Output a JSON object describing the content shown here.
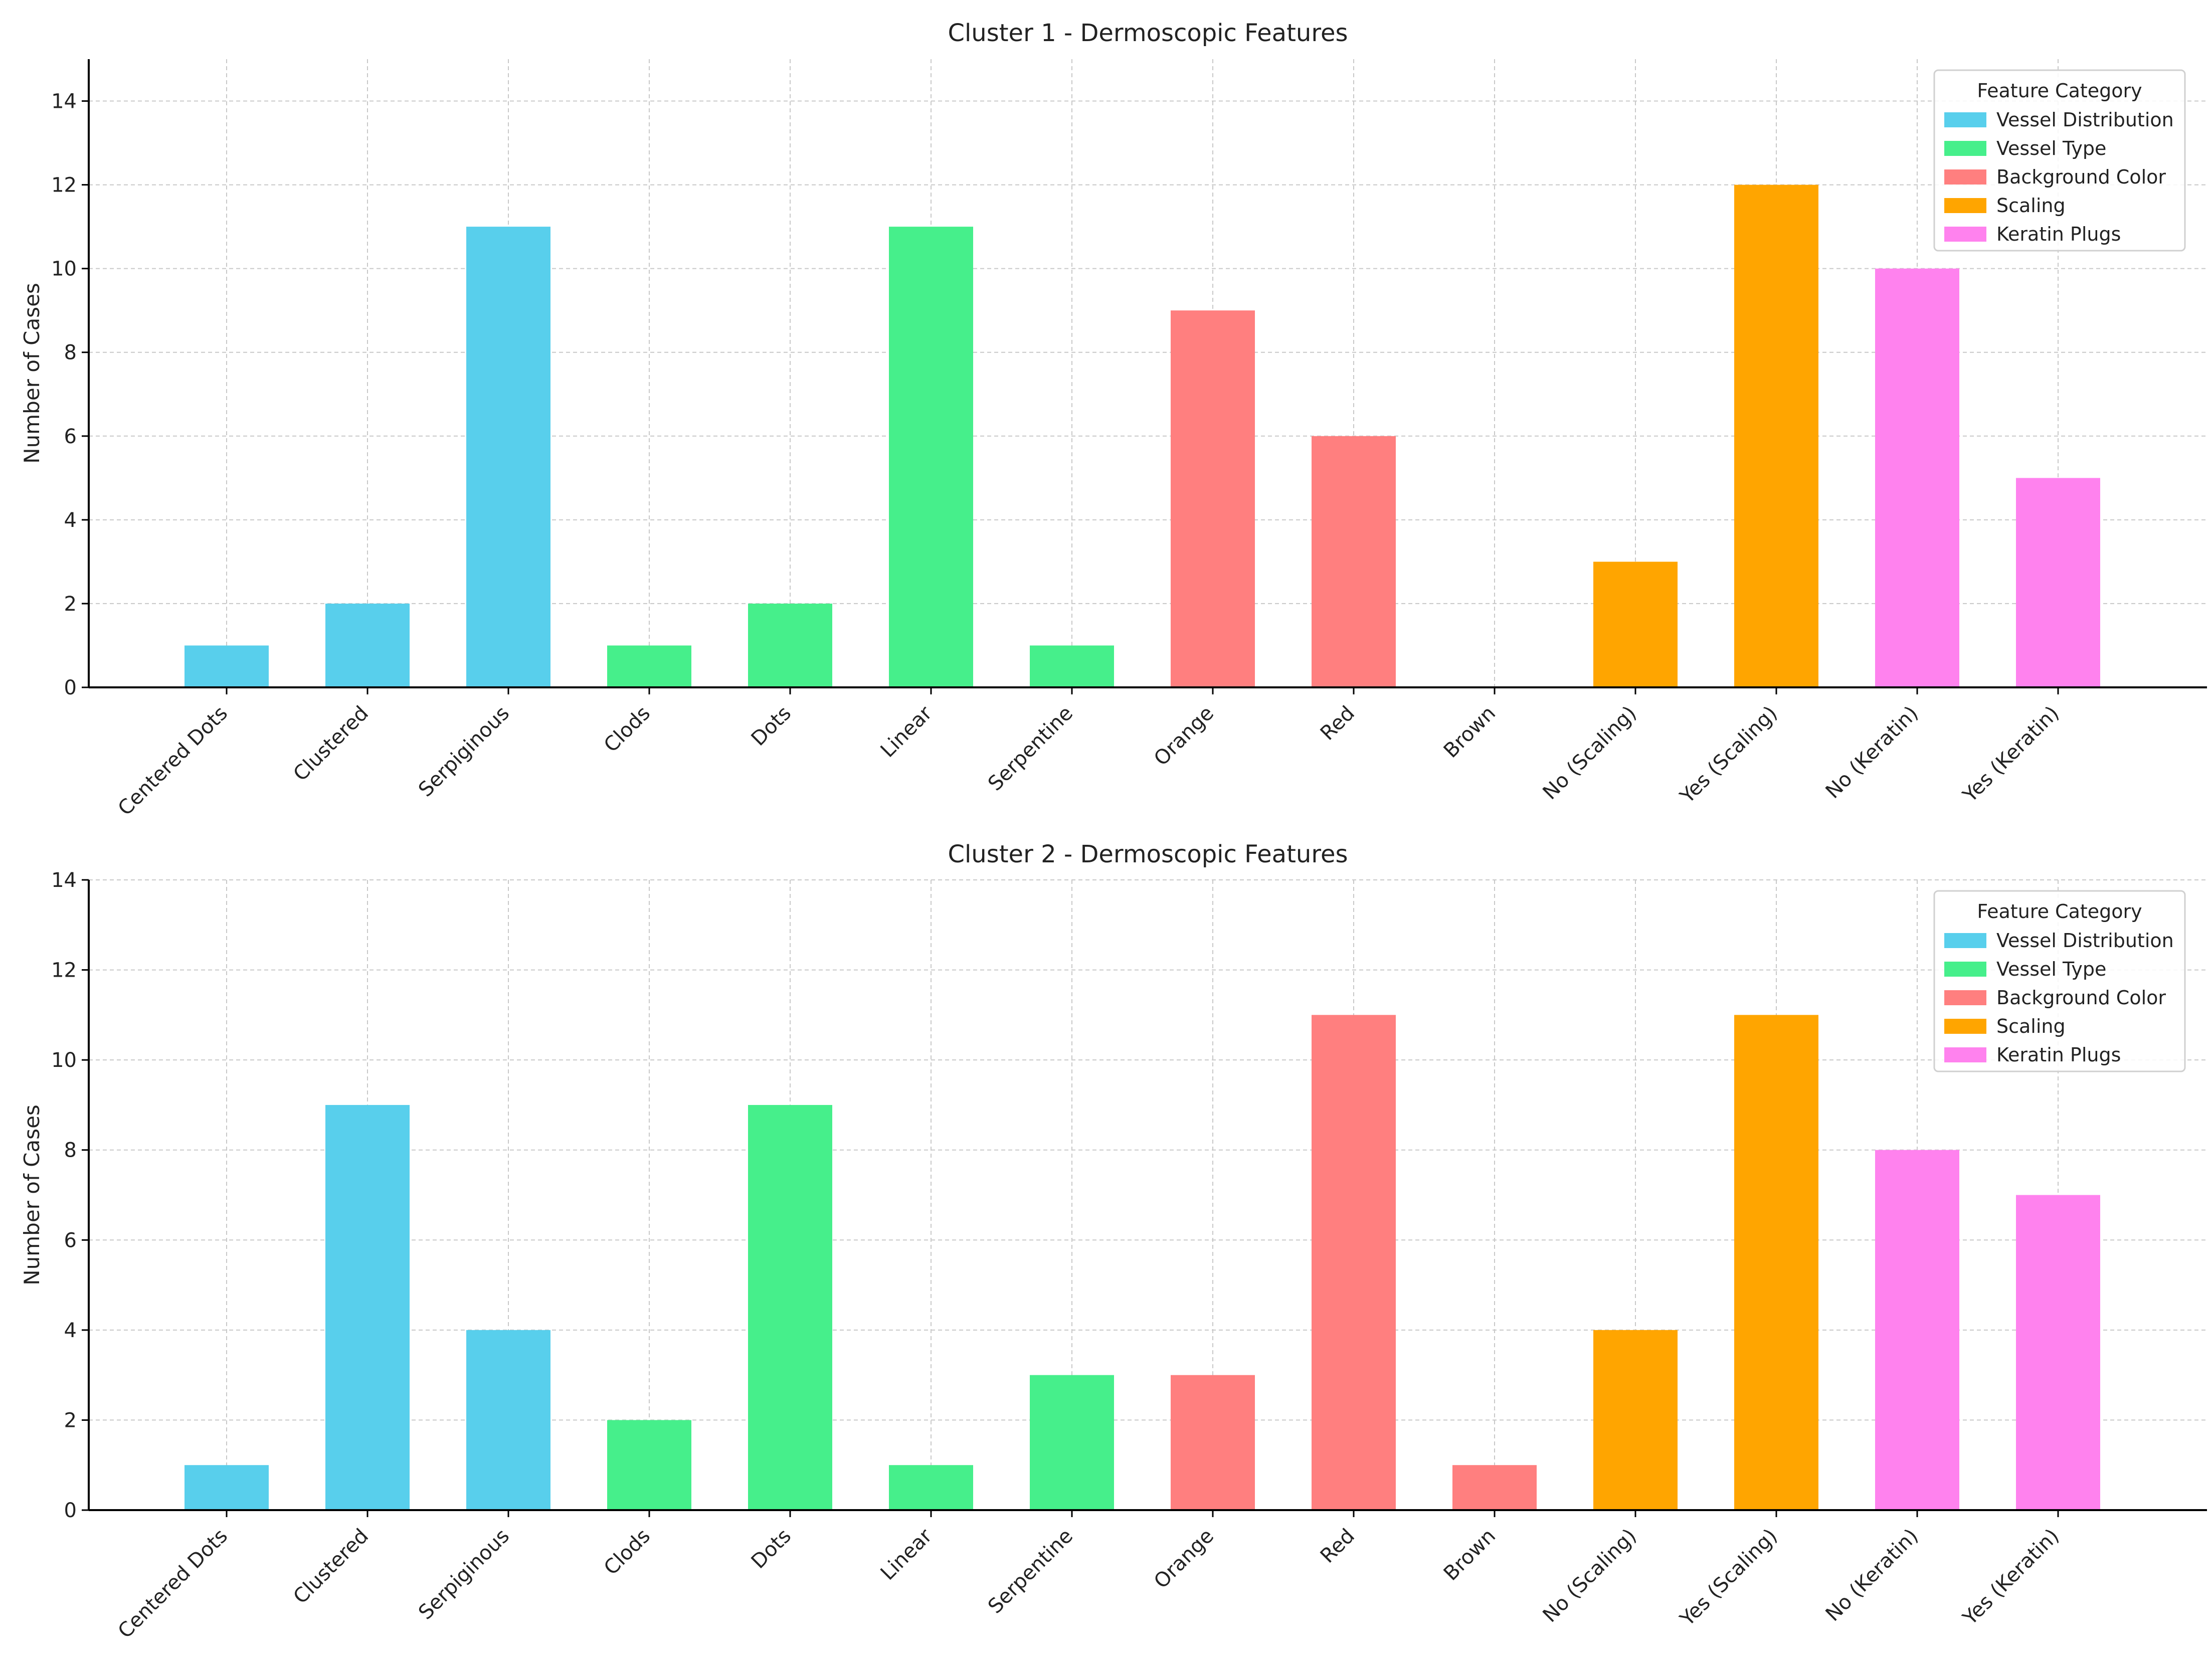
{
  "legend_title": "Feature Category",
  "groups": [
    {
      "name": "Vessel Distribution",
      "color": "#58CFEC"
    },
    {
      "name": "Vessel Type",
      "color": "#46EF8B"
    },
    {
      "name": "Background Color",
      "color": "#FF7F7F"
    },
    {
      "name": "Scaling",
      "color": "#FFA500"
    },
    {
      "name": "Keratin Plugs",
      "color": "#FF82EE"
    }
  ],
  "chart_data": [
    {
      "type": "bar",
      "title": "Cluster 1 - Dermoscopic Features",
      "xlabel": "",
      "ylabel": "Number of Cases",
      "ylim": [
        0,
        15
      ],
      "yticks": [
        0,
        2,
        4,
        6,
        8,
        10,
        12,
        14
      ],
      "grid": true,
      "legend_position": "top-right",
      "categories": [
        "Centered Dots",
        "Clustered",
        "Serpiginous",
        "Clods",
        "Dots",
        "Linear",
        "Serpentine",
        "Orange",
        "Red",
        "Brown",
        "No (Scaling)",
        "Yes (Scaling)",
        "No (Keratin)",
        "Yes (Keratin)"
      ],
      "category_groups": [
        0,
        0,
        0,
        1,
        1,
        1,
        1,
        2,
        2,
        2,
        3,
        3,
        4,
        4
      ],
      "values": [
        1,
        2,
        11,
        1,
        2,
        11,
        1,
        9,
        6,
        0,
        3,
        12,
        10,
        5
      ]
    },
    {
      "type": "bar",
      "title": "Cluster 2 - Dermoscopic Features",
      "xlabel": "",
      "ylabel": "Number of Cases",
      "ylim": [
        0,
        14
      ],
      "yticks": [
        0,
        2,
        4,
        6,
        8,
        10,
        12,
        14
      ],
      "grid": true,
      "legend_position": "top-right",
      "categories": [
        "Centered Dots",
        "Clustered",
        "Serpiginous",
        "Clods",
        "Dots",
        "Linear",
        "Serpentine",
        "Orange",
        "Red",
        "Brown",
        "No (Scaling)",
        "Yes (Scaling)",
        "No (Keratin)",
        "Yes (Keratin)"
      ],
      "category_groups": [
        0,
        0,
        0,
        1,
        1,
        1,
        1,
        2,
        2,
        2,
        3,
        3,
        4,
        4
      ],
      "values": [
        1,
        9,
        4,
        2,
        9,
        1,
        3,
        3,
        11,
        1,
        4,
        11,
        8,
        7
      ]
    }
  ]
}
